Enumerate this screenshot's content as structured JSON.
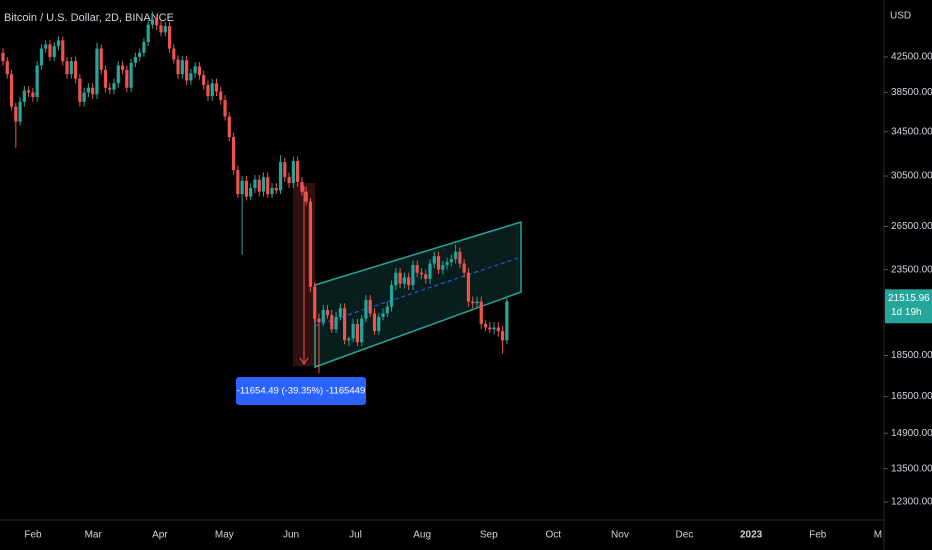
{
  "chart_data": {
    "type": "candlestick",
    "title": "Bitcoin / U.S. Dollar, 2D, BINANCE",
    "y_unit": "USD",
    "up_color": "#26a69a",
    "down_color": "#ef5350",
    "log_scale": true,
    "ylim": [
      11700,
      49800
    ],
    "yticks": [
      {
        "value": 42500,
        "label": "42500.00"
      },
      {
        "value": 38500,
        "label": "38500.00"
      },
      {
        "value": 34500,
        "label": "34500.00"
      },
      {
        "value": 30500,
        "label": "30500.00"
      },
      {
        "value": 26500,
        "label": "26500.00"
      },
      {
        "value": 23500,
        "label": "23500.00"
      },
      {
        "value": 18500,
        "label": "18500.00"
      },
      {
        "value": 16500,
        "label": "16500.00"
      },
      {
        "value": 14900,
        "label": "14900.00"
      },
      {
        "value": 13500,
        "label": "13500.00"
      },
      {
        "value": 12300,
        "label": "12300.00"
      }
    ],
    "x_labels": [
      "Feb",
      "Mar",
      "Apr",
      "May",
      "Jun",
      "Jul",
      "Aug",
      "Sep",
      "Oct",
      "Nov",
      "Dec",
      "2023",
      "Feb",
      "M"
    ],
    "last_price_label": "21515.96",
    "countdown": "1d 19h",
    "measure_label": "-11654.49 (-39.35%) -1165449",
    "ohlc": [
      [
        43000,
        43500,
        41500,
        42000
      ],
      [
        42000,
        42500,
        40000,
        40500
      ],
      [
        40500,
        41000,
        36600,
        37000
      ],
      [
        37000,
        37400,
        33000,
        35500
      ],
      [
        35500,
        38000,
        35100,
        37500
      ],
      [
        37500,
        39200,
        37000,
        38700
      ],
      [
        38700,
        39200,
        38000,
        38500
      ],
      [
        38500,
        39000,
        37500,
        38000
      ],
      [
        38000,
        42000,
        37500,
        41500
      ],
      [
        41500,
        44000,
        41000,
        43500
      ],
      [
        43500,
        44500,
        43000,
        44000
      ],
      [
        44000,
        44500,
        42000,
        42500
      ],
      [
        42500,
        44300,
        42000,
        43800
      ],
      [
        43800,
        45000,
        43300,
        44500
      ],
      [
        44500,
        45000,
        41500,
        42000
      ],
      [
        42000,
        42500,
        40000,
        40500
      ],
      [
        40500,
        42500,
        40000,
        42000
      ],
      [
        42000,
        42500,
        39500,
        40000
      ],
      [
        40000,
        40500,
        37000,
        37500
      ],
      [
        37500,
        39000,
        37000,
        38500
      ],
      [
        38500,
        39500,
        38000,
        39000
      ],
      [
        39000,
        39500,
        37800,
        38300
      ],
      [
        38300,
        44200,
        37800,
        43500
      ],
      [
        43500,
        44000,
        40500,
        41000
      ],
      [
        41000,
        41500,
        38500,
        39000
      ],
      [
        39000,
        39500,
        38300,
        38800
      ],
      [
        38800,
        40000,
        38300,
        39500
      ],
      [
        39500,
        42000,
        39000,
        41500
      ],
      [
        41500,
        42000,
        40500,
        41000
      ],
      [
        41000,
        41500,
        38500,
        39000
      ],
      [
        39000,
        42300,
        38500,
        41800
      ],
      [
        41800,
        43000,
        41300,
        42500
      ],
      [
        42500,
        43500,
        42000,
        43000
      ],
      [
        43000,
        44800,
        42500,
        44300
      ],
      [
        44300,
        47100,
        43800,
        46500
      ],
      [
        46500,
        48200,
        46000,
        47200
      ],
      [
        47200,
        47800,
        45800,
        46400
      ],
      [
        46400,
        47000,
        45000,
        45500
      ],
      [
        45500,
        46900,
        45000,
        46300
      ],
      [
        46300,
        46900,
        43000,
        43500
      ],
      [
        43500,
        44000,
        41700,
        42200
      ],
      [
        42200,
        42700,
        40000,
        40500
      ],
      [
        40500,
        42600,
        40000,
        42100
      ],
      [
        42100,
        42600,
        39300,
        39800
      ],
      [
        39800,
        41100,
        39300,
        40600
      ],
      [
        40600,
        41900,
        40100,
        41400
      ],
      [
        41400,
        41900,
        39900,
        40400
      ],
      [
        40400,
        40900,
        38800,
        39300
      ],
      [
        39300,
        39800,
        37600,
        38100
      ],
      [
        38100,
        40000,
        37600,
        39500
      ],
      [
        39500,
        40000,
        38100,
        38600
      ],
      [
        38600,
        39100,
        37200,
        37700
      ],
      [
        37700,
        38200,
        35600,
        36000
      ],
      [
        36000,
        36400,
        33600,
        34000
      ],
      [
        34000,
        34400,
        30600,
        31000
      ],
      [
        31000,
        31400,
        28700,
        29000
      ],
      [
        29000,
        30500,
        24500,
        30100
      ],
      [
        30100,
        30500,
        28500,
        28800
      ],
      [
        28800,
        29900,
        28500,
        29500
      ],
      [
        29500,
        30600,
        29100,
        30200
      ],
      [
        30200,
        30600,
        28800,
        29200
      ],
      [
        29200,
        30800,
        28800,
        30400
      ],
      [
        30400,
        30800,
        28700,
        29000
      ],
      [
        29000,
        29900,
        28700,
        29500
      ],
      [
        29500,
        29900,
        29000,
        29300
      ],
      [
        29300,
        32300,
        29000,
        31700
      ],
      [
        31700,
        32100,
        30000,
        30400
      ],
      [
        30400,
        30800,
        29500,
        29900
      ],
      [
        29900,
        32200,
        29500,
        31800
      ],
      [
        31800,
        32200,
        29600,
        30000
      ],
      [
        30000,
        30400,
        28900,
        29200
      ],
      [
        29200,
        29600,
        28100,
        28400
      ],
      [
        28400,
        28700,
        22100,
        22400
      ],
      [
        22400,
        22700,
        20300,
        20500
      ],
      [
        20500,
        20800,
        17600,
        20300
      ],
      [
        20300,
        21300,
        20100,
        21000
      ],
      [
        21000,
        21300,
        20500,
        20700
      ],
      [
        20700,
        21000,
        19700,
        19900
      ],
      [
        19900,
        20900,
        19700,
        20600
      ],
      [
        20600,
        21400,
        20400,
        21100
      ],
      [
        21100,
        21400,
        19100,
        19300
      ],
      [
        19300,
        19500,
        19000,
        19400
      ],
      [
        19400,
        20500,
        19200,
        20200
      ],
      [
        20200,
        20500,
        19000,
        19200
      ],
      [
        19200,
        20700,
        19000,
        20500
      ],
      [
        20500,
        21900,
        20300,
        21600
      ],
      [
        21600,
        21900,
        20600,
        20800
      ],
      [
        20800,
        21100,
        19600,
        19800
      ],
      [
        19800,
        20800,
        19600,
        20600
      ],
      [
        20600,
        21100,
        20400,
        20800
      ],
      [
        20800,
        21500,
        20600,
        21200
      ],
      [
        21200,
        22800,
        20900,
        22500
      ],
      [
        22500,
        23600,
        22200,
        23300
      ],
      [
        23300,
        23600,
        22300,
        22600
      ],
      [
        22600,
        23300,
        22300,
        23000
      ],
      [
        23000,
        23300,
        22200,
        22500
      ],
      [
        22500,
        24100,
        22200,
        23800
      ],
      [
        23800,
        24100,
        23000,
        23300
      ],
      [
        23300,
        23600,
        22900,
        23200
      ],
      [
        23200,
        23500,
        22600,
        22900
      ],
      [
        22900,
        24200,
        22600,
        23900
      ],
      [
        23900,
        24700,
        23600,
        24400
      ],
      [
        24400,
        24700,
        23200,
        23500
      ],
      [
        23500,
        24100,
        23200,
        23800
      ],
      [
        23800,
        24300,
        23500,
        24000
      ],
      [
        24000,
        24500,
        23700,
        24200
      ],
      [
        24200,
        25200,
        23900,
        24700
      ],
      [
        24700,
        25000,
        23600,
        23900
      ],
      [
        23900,
        24200,
        23000,
        23300
      ],
      [
        23300,
        23600,
        21200,
        21500
      ],
      [
        21500,
        21800,
        21100,
        21400
      ],
      [
        21400,
        21800,
        21100,
        21500
      ],
      [
        21500,
        21800,
        19900,
        20200
      ],
      [
        20200,
        20400,
        19800,
        20000
      ],
      [
        20000,
        20300,
        19700,
        19900
      ],
      [
        19900,
        20300,
        19600,
        20000
      ],
      [
        20000,
        20300,
        19500,
        19800
      ],
      [
        19800,
        20100,
        18600,
        19300
      ],
      [
        19300,
        21700,
        19100,
        21515.96
      ]
    ]
  }
}
